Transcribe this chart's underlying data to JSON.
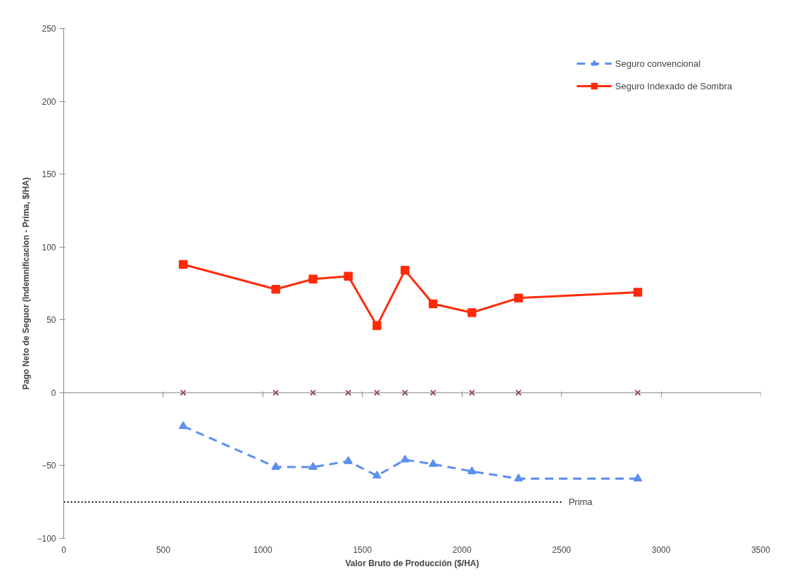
{
  "chart_data": {
    "type": "line",
    "xlabel": "Valor Bruto de Producción ($/HA)",
    "ylabel": "Pago Neto de Seguor (Indemnificacion - Prima, $/HA)",
    "x": [
      600,
      1065,
      1252,
      1429,
      1573,
      1714,
      1855,
      2050,
      2284,
      2883
    ],
    "series": [
      {
        "name": "Seguro convencional",
        "color": "#5b8ff0",
        "marker": "triangle",
        "line_style": "dashed",
        "values": [
          -23,
          -51,
          -51,
          -47,
          -57,
          -46,
          -49,
          -54,
          -59,
          -59
        ]
      },
      {
        "name": "Seguro Indexado de Sombra",
        "color": "#ff2a0a",
        "marker": "square",
        "line_style": "solid",
        "values": [
          88,
          71,
          78,
          80,
          46,
          84,
          61,
          55,
          65,
          69
        ]
      },
      {
        "type": "scatter",
        "color": "#7f1f3f",
        "marker": "cross",
        "values": [
          0,
          0,
          0,
          0,
          0,
          0,
          0,
          0,
          0,
          0
        ]
      },
      {
        "name": "Prima",
        "color": "#000000",
        "marker": "none",
        "line_style": "dotted",
        "x": [
          0,
          2500
        ],
        "values": [
          -75,
          -75
        ]
      }
    ],
    "xlim": [
      0,
      3500
    ],
    "xticks": [
      0,
      500,
      1000,
      1500,
      2000,
      2500,
      3000,
      3500
    ],
    "ylim": [
      -100,
      250
    ],
    "yticks": [
      -100,
      -50,
      0,
      50,
      100,
      150,
      200,
      250
    ],
    "legend": "top right"
  }
}
